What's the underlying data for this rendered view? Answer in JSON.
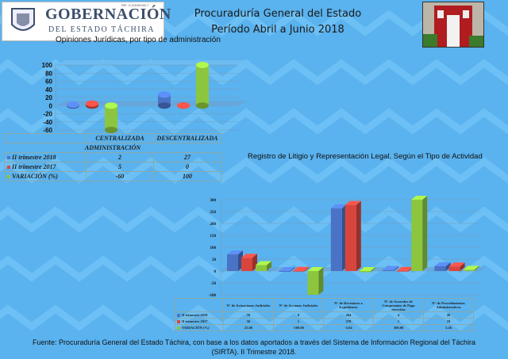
{
  "header": {
    "logo_main": "GOBERNACIÓN",
    "logo_sub": "DEL ESTADO TÁCHIRA",
    "logo_rif": "RIF: G-20000160-7",
    "title": "Procuraduría General del Estado",
    "period": "Período Abril a Junio 2018"
  },
  "colors": {
    "background": "#5ab2ee",
    "series_2018": "#4a73c6",
    "series_2017": "#d8453d",
    "series_var": "#8cc63f"
  },
  "chart_data": [
    {
      "type": "bar",
      "title": "Opiniones Jurídicas, por tipo de administración",
      "xlabel": "ADMINISTRACIÓN",
      "categories": [
        "CENTRALIZADA",
        "DESCENTRALIZADA"
      ],
      "series": [
        {
          "name": "II trimestre 2018",
          "values": [
            2,
            27
          ]
        },
        {
          "name": "II trimestre 2017",
          "values": [
            5,
            0
          ]
        },
        {
          "name": "VARIACIÓN (%)",
          "values": [
            -60,
            100
          ]
        }
      ],
      "display": [
        [
          "2",
          "27"
        ],
        [
          "5",
          "0"
        ],
        [
          "-60",
          "100"
        ]
      ],
      "ylim": [
        -60,
        100
      ],
      "yticks": [
        "100",
        "80",
        "60",
        "40",
        "20",
        "0",
        "-20",
        "-40",
        "-60"
      ]
    },
    {
      "type": "bar",
      "title": "Registro de Litigio y Representación Legal, Según el Tipo de Actividad",
      "categories": [
        "N° de Actuaciones Judiciales",
        "N° de Acciones Judiciales",
        "N° de Revisiones a Expedientes",
        "N° de Acuerdos de Compromiso de Pago Suscritos",
        "N° de Procedimientos Administrativos"
      ],
      "series": [
        {
          "name": "II trimestre 2018",
          "values": [
            70,
            0,
            264,
            4,
            20
          ]
        },
        {
          "name": "II trimestre 2017",
          "values": [
            56,
            1,
            278,
            1,
            19
          ]
        },
        {
          "name": "VARIACIÓN (%)",
          "values": [
            25,
            -100,
            -5.04,
            300,
            5.26
          ]
        }
      ],
      "display": [
        [
          "70",
          "0",
          "264",
          "4",
          "20"
        ],
        [
          "56",
          "1",
          "278",
          "1",
          "19"
        ],
        [
          "25.00",
          "-100.00",
          "-5.04",
          "300.00",
          "5.26"
        ]
      ],
      "ylim": [
        -100,
        300
      ],
      "yticks": [
        "300",
        "250",
        "200",
        "150",
        "100",
        "50",
        "0",
        "-50",
        "-100"
      ]
    }
  ],
  "footer": {
    "line1": "Fuente: Procuraduría General del Estado Táchira, con base a  los datos aportados a través del Sistema de  Información Regional del Táchira",
    "line2": "(SIRTA). II Trimestre 2018."
  }
}
